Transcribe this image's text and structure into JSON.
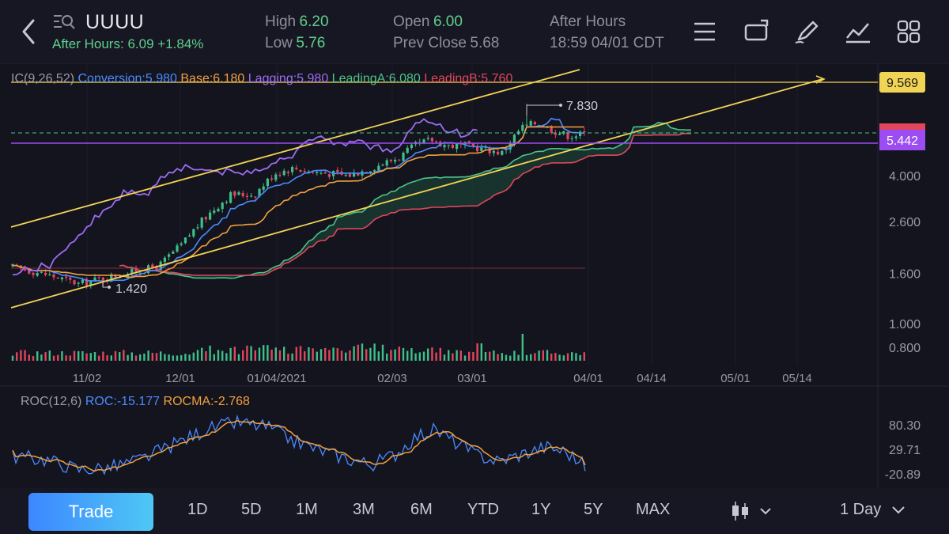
{
  "header": {
    "ticker": "UUUU",
    "after_hours_label": "After Hours:",
    "after_hours_price": "6.09",
    "after_hours_change": "+1.84%",
    "high_label": "High",
    "high_value": "6.20",
    "low_label": "Low",
    "low_value": "5.76",
    "open_label": "Open",
    "open_value": "6.00",
    "prev_close_label": "Prev Close",
    "prev_close_value": "5.68",
    "session_label": "After Hours",
    "session_time": "18:59 04/01 CDT",
    "icons": [
      "menu-icon",
      "rotate-screen-icon",
      "draw-pen-icon",
      "indicator-chart-icon",
      "grid-layout-icon"
    ]
  },
  "indicators": {
    "ic": {
      "name": "IC(9,26,52)",
      "conversion": "Conversion:5.980",
      "base": "Base:6.180",
      "lagging": "Lagging:5.980",
      "leading_a": "LeadingA:6.080",
      "leading_b": "LeadingB:5.760"
    },
    "roc": {
      "name": "ROC(12,6)",
      "roc": "ROC:-15.177",
      "rocma": "ROCMA:-2.768"
    }
  },
  "chart_data": [
    {
      "type": "candlestick",
      "price_axis_labels": [
        "4.000",
        "2.600",
        "1.600",
        "1.000",
        "0.800"
      ],
      "price_axis_values": [
        4.0,
        2.6,
        1.6,
        1.0,
        0.8
      ],
      "x_tick_labels": [
        "11/02",
        "12/01",
        "01/04/2021",
        "02/03",
        "03/01",
        "04/01",
        "04/14",
        "05/01",
        "05/14"
      ],
      "price_tags": [
        {
          "label": "9.569",
          "value": 9.569,
          "color": "#f2d455"
        },
        {
          "label": "5.442",
          "value": 5.442,
          "color": "#9b4cf2"
        }
      ],
      "annotations": [
        {
          "label": "7.830",
          "kind": "high"
        },
        {
          "label": "1.420",
          "kind": "low"
        }
      ],
      "series": [
        {
          "name": "Conversion",
          "color": "#4a8bff"
        },
        {
          "name": "Base",
          "color": "#f2a03c"
        },
        {
          "name": "Lagging",
          "color": "#9b6cf2"
        },
        {
          "name": "LeadingA",
          "color": "#4cc38a"
        },
        {
          "name": "LeadingB",
          "color": "#e0475c"
        }
      ],
      "colors": {
        "up": "#3fbf8a",
        "down": "#e0475c",
        "trend": "#f2d455"
      }
    },
    {
      "type": "line",
      "axis_labels": [
        "80.30",
        "29.71",
        "-20.89"
      ],
      "axis_values": [
        80.3,
        29.71,
        -20.89
      ],
      "series": [
        {
          "name": "ROC",
          "color": "#4a8bff",
          "last": -15.177
        },
        {
          "name": "ROCMA",
          "color": "#f2a03c",
          "last": -2.768
        }
      ]
    }
  ],
  "toolbar": {
    "trade_label": "Trade",
    "timeframes": [
      "1D",
      "5D",
      "1M",
      "3M",
      "6M",
      "YTD",
      "1Y",
      "5Y",
      "MAX"
    ],
    "interval_label": "1 Day"
  }
}
